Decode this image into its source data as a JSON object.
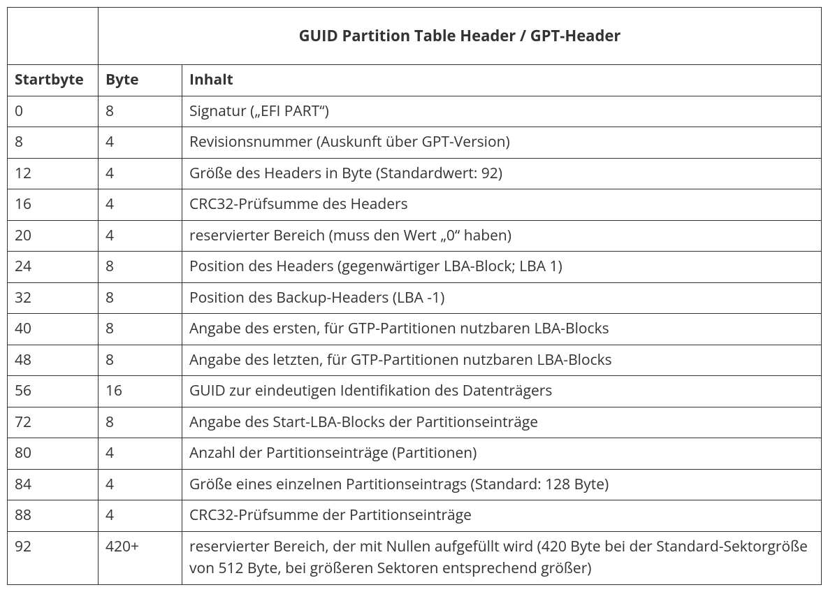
{
  "table": {
    "title": "GUID Partition Table Header / GPT-Header",
    "columns": {
      "startbyte": "Startbyte",
      "byte": "Byte",
      "inhalt": "Inhalt"
    },
    "column_widths": {
      "startbyte": 130,
      "byte": 120,
      "inhalt": 915
    },
    "rows": [
      {
        "startbyte": "0",
        "byte": "8",
        "inhalt": "Signatur („EFI PART“)"
      },
      {
        "startbyte": "8",
        "byte": "4",
        "inhalt": "Revisionsnummer (Auskunft über GPT-Version)"
      },
      {
        "startbyte": "12",
        "byte": "4",
        "inhalt": "Größe des Headers in Byte (Standardwert: 92)"
      },
      {
        "startbyte": "16",
        "byte": "4",
        "inhalt": "CRC32-Prüfsumme des Headers"
      },
      {
        "startbyte": "20",
        "byte": "4",
        "inhalt": "reservierter Bereich (muss den Wert „0“ haben)"
      },
      {
        "startbyte": "24",
        "byte": "8",
        "inhalt": "Position des Headers (gegenwärtiger LBA-Block; LBA 1)"
      },
      {
        "startbyte": "32",
        "byte": "8",
        "inhalt": "Position des Backup-Headers (LBA -1)"
      },
      {
        "startbyte": "40",
        "byte": "8",
        "inhalt": "Angabe des ersten, für GTP-Partitionen nutzbaren LBA-Blocks"
      },
      {
        "startbyte": "48",
        "byte": "8",
        "inhalt": "Angabe des letzten, für GTP-Partitionen nutzbaren LBA-Blocks"
      },
      {
        "startbyte": "56",
        "byte": "16",
        "inhalt": "GUID zur eindeutigen Identifikation des Datenträgers"
      },
      {
        "startbyte": "72",
        "byte": "8",
        "inhalt": "Angabe des Start-LBA-Blocks der Partitionseinträge"
      },
      {
        "startbyte": "80",
        "byte": "4",
        "inhalt": "Anzahl der Partitionseinträge (Partitionen)"
      },
      {
        "startbyte": "84",
        "byte": "4",
        "inhalt": "Größe eines einzelnen Partitionseintrags (Standard: 128 Byte)"
      },
      {
        "startbyte": "88",
        "byte": "4",
        "inhalt": "CRC32-Prüfsumme der Partitionseinträge"
      },
      {
        "startbyte": "92",
        "byte": "420+",
        "inhalt": "reservierter Bereich, der mit Nullen aufgefüllt wird (420 Byte bei der Standard-Sektorgröße von 512 Byte, bei größeren Sektoren entsprechend größer)"
      }
    ],
    "styling": {
      "border_color": "#333333",
      "text_color": "#333333",
      "background_color": "#ffffff",
      "font_size_body": 21,
      "font_size_title": 22,
      "title_font_weight": 700,
      "header_font_weight": 700,
      "cell_padding_v": 6,
      "cell_padding_h": 10,
      "title_padding_v": 24,
      "line_height": 1.5
    }
  }
}
